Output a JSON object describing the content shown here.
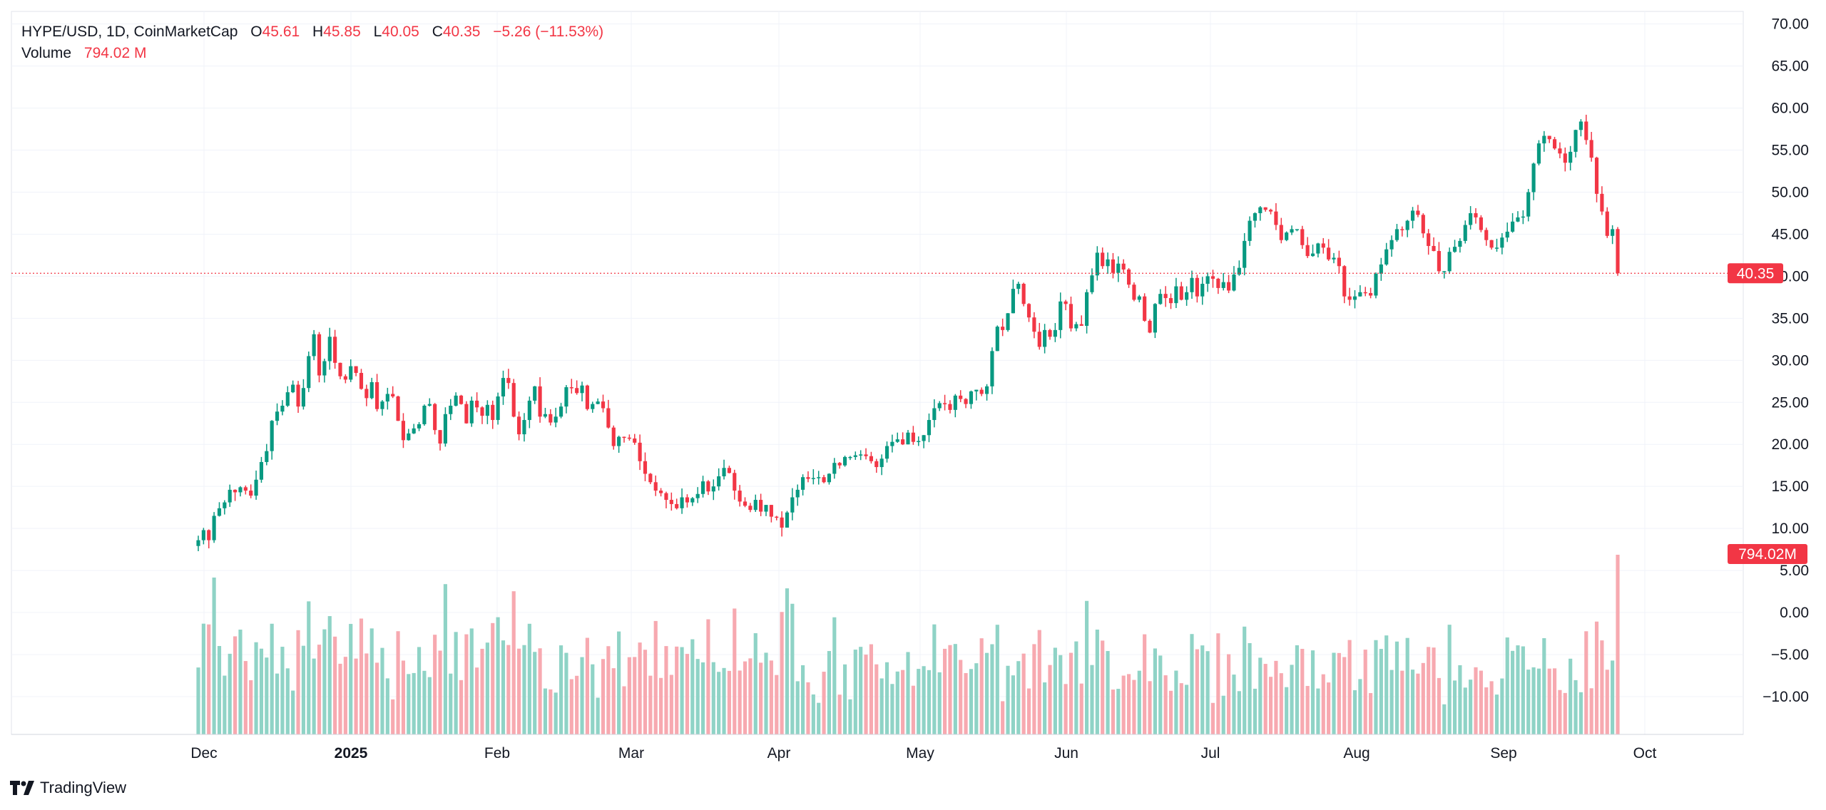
{
  "legend": {
    "symbol": "HYPE/USD, 1D, CoinMarketCap",
    "o_label": "O",
    "o_value": "45.61",
    "h_label": "H",
    "h_value": "45.85",
    "l_label": "L",
    "l_value": "40.05",
    "c_label": "C",
    "c_value": "40.35",
    "change": "−5.26 (−11.53%)",
    "volume_label": "Volume",
    "volume_value": "794.02 M"
  },
  "brand": {
    "name": "TradingView"
  },
  "colors": {
    "up": "#089981",
    "down": "#f23645",
    "up_vol": "#8fd3c6",
    "down_vol": "#f7a9b0",
    "grid": "#f0f3fa",
    "text": "#131722"
  },
  "chart_data": {
    "type": "candlestick",
    "title": "HYPE/USD, 1D, CoinMarketCap",
    "price_axis": {
      "ticks": [
        "70.00",
        "65.00",
        "60.00",
        "55.00",
        "50.00",
        "45.00",
        "40.00",
        "35.00",
        "30.00",
        "25.00",
        "20.00",
        "15.00",
        "10.00",
        "5.00",
        "0.00",
        "−5.00",
        "−10.00"
      ],
      "range": [
        -14.5,
        71.5
      ]
    },
    "time_axis": {
      "labels": [
        "Dec",
        "2025",
        "Feb",
        "Mar",
        "Apr",
        "May",
        "Jun",
        "Jul",
        "Aug",
        "Sep",
        "Oct"
      ]
    },
    "last_price_label": "40.35",
    "last_volume_label": "794.02M",
    "close_series": [
      8.6,
      9.8,
      8.6,
      11.5,
      12.4,
      13.1,
      14.6,
      14.3,
      14.9,
      14.5,
      13.9,
      15.8,
      17.9,
      19.2,
      22.8,
      23.9,
      24.6,
      26.2,
      27.1,
      24.5,
      26.7,
      30.5,
      33.1,
      28.2,
      29.9,
      32.8,
      29.7,
      28.1,
      27.7,
      29.3,
      28.5,
      26.6,
      25.5,
      27.4,
      24.2,
      25.1,
      26.0,
      25.7,
      22.8,
      20.5,
      21.3,
      21.9,
      22.4,
      24.6,
      24.8,
      21.7,
      20.1,
      23.6,
      24.6,
      25.8,
      24.8,
      22.5,
      25.2,
      24.4,
      23.4,
      24.7,
      22.9,
      25.7,
      27.9,
      27.3,
      23.3,
      21.2,
      22.9,
      25.2,
      26.9,
      23.3,
      23.6,
      22.6,
      23.3,
      24.5,
      26.8,
      26.7,
      26.1,
      27.0,
      24.2,
      24.8,
      25.1,
      24.3,
      22.0,
      19.8,
      20.9,
      20.8,
      20.7,
      20.2,
      18.0,
      16.5,
      15.5,
      14.5,
      14.2,
      13.4,
      12.9,
      12.4,
      13.7,
      13.1,
      13.6,
      14.1,
      15.6,
      14.4,
      15.0,
      16.2,
      17.2,
      16.6,
      14.5,
      13.2,
      12.7,
      12.2,
      13.4,
      12.0,
      12.8,
      11.4,
      11.3,
      10.1,
      11.9,
      13.7,
      14.6,
      16.1,
      15.9,
      16.0,
      16.1,
      15.5,
      16.5,
      17.8,
      17.5,
      18.5,
      18.5,
      18.7,
      18.8,
      18.6,
      18.0,
      17.3,
      18.3,
      19.8,
      20.3,
      20.6,
      20.0,
      21.4,
      20.3,
      20.4,
      21.1,
      22.9,
      24.3,
      24.9,
      24.8,
      24.1,
      25.8,
      25.4,
      24.8,
      26.3,
      26.5,
      26.0,
      26.9,
      31.1,
      34.0,
      33.6,
      35.6,
      38.5,
      39.1,
      36.7,
      35.1,
      33.4,
      31.6,
      33.6,
      32.8,
      33.6,
      37.0,
      36.7,
      33.8,
      34.3,
      34.1,
      38.1,
      40.1,
      42.8,
      41.2,
      42.0,
      40.4,
      41.5,
      40.8,
      39.0,
      37.2,
      37.6,
      34.7,
      33.3,
      36.7,
      37.9,
      37.4,
      36.8,
      38.8,
      37.2,
      38.1,
      39.8,
      37.6,
      39.1,
      40.0,
      39.7,
      38.6,
      39.3,
      38.3,
      40.2,
      41.0,
      44.2,
      46.6,
      47.5,
      48.2,
      47.9,
      47.7,
      46.1,
      44.3,
      45.2,
      45.6,
      45.6,
      43.7,
      42.4,
      42.7,
      43.9,
      43.4,
      42.0,
      42.2,
      41.2,
      37.6,
      37.2,
      37.6,
      38.1,
      38.0,
      37.7,
      40.3,
      41.4,
      43.2,
      44.3,
      45.6,
      45.5,
      46.6,
      47.8,
      47.3,
      45.1,
      43.6,
      43.0,
      40.6,
      40.6,
      42.9,
      43.5,
      44.2,
      46.1,
      47.5,
      47.0,
      45.5,
      44.3,
      43.4,
      43.4,
      44.6,
      45.3,
      46.5,
      47.0,
      47.1,
      50.0,
      53.4,
      55.8,
      56.7,
      56.3,
      55.2,
      54.6,
      53.5,
      54.8,
      57.4,
      58.4,
      56.2,
      54.1,
      49.8,
      47.7,
      44.8,
      45.6,
      40.35
    ],
    "volume_range": [
      -14.5,
      71.5
    ]
  }
}
